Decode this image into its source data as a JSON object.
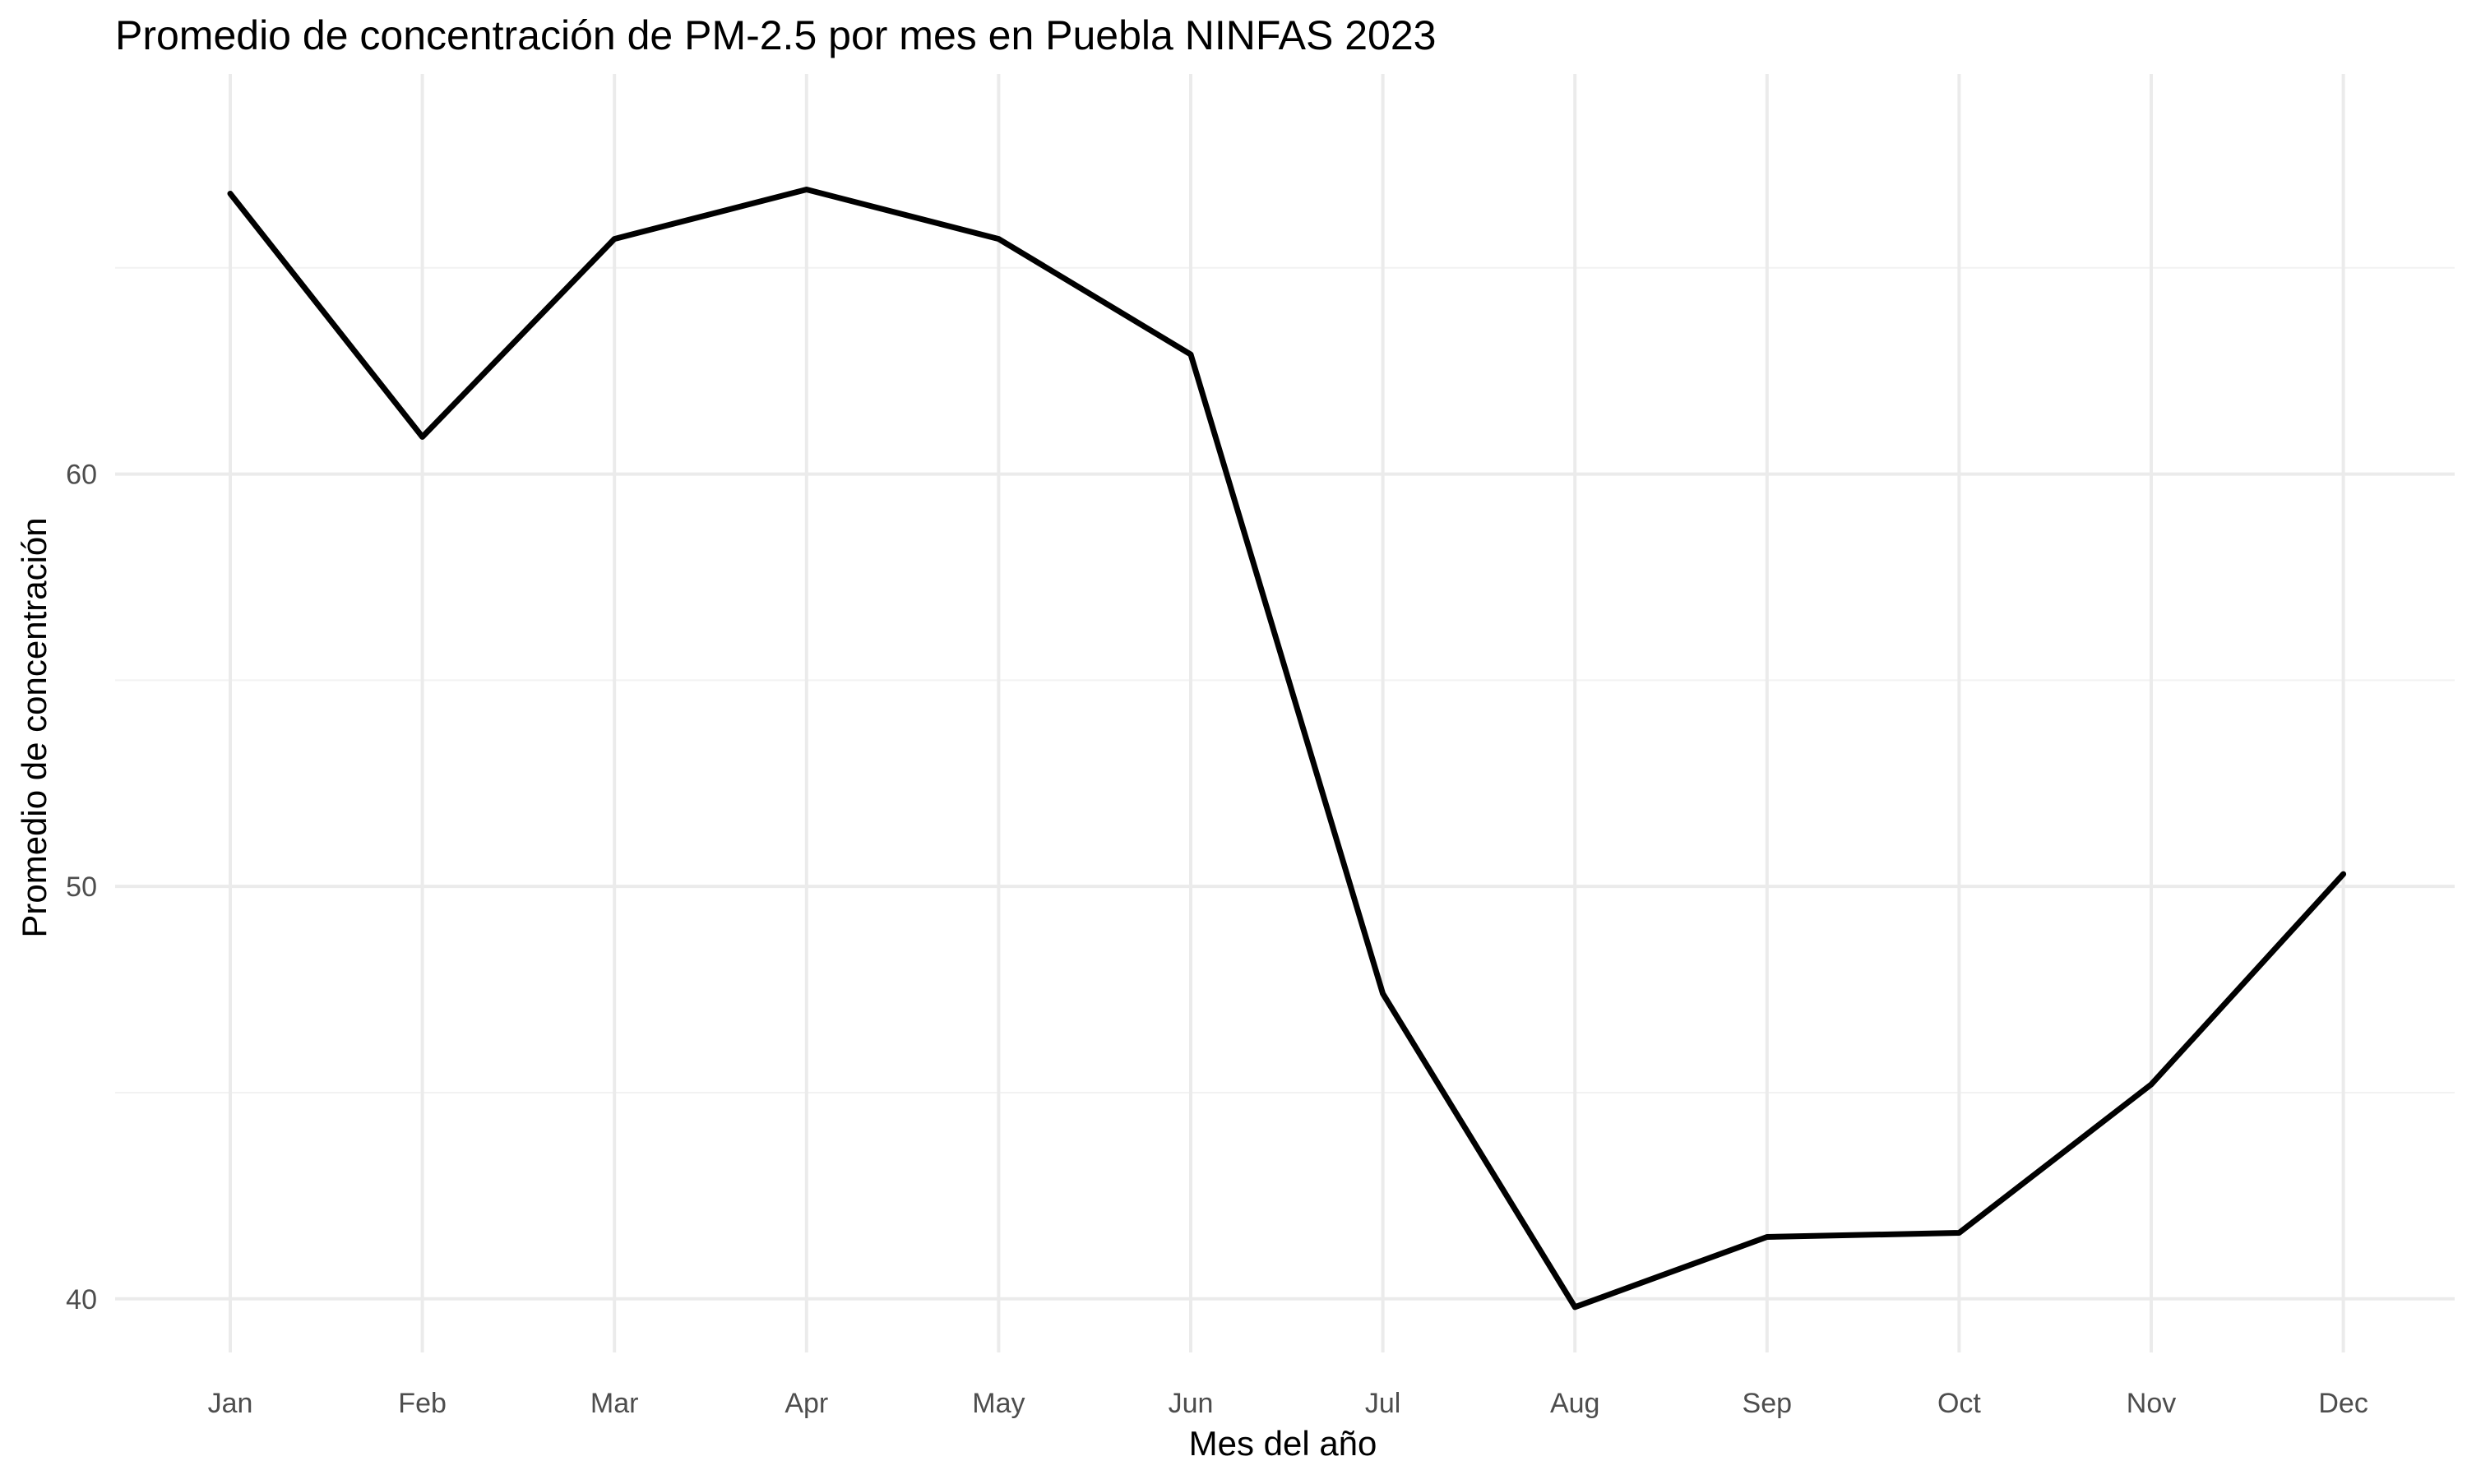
{
  "chart_data": {
    "type": "line",
    "title": "Promedio de concentración de PM-2.5 por mes en Puebla NINFAS 2023",
    "xlabel": "Mes del año",
    "ylabel": "Promedio de concentración",
    "categories": [
      "Jan",
      "Feb",
      "Mar",
      "Apr",
      "May",
      "Jun",
      "Jul",
      "Aug",
      "Sep",
      "Oct",
      "Nov",
      "Dec"
    ],
    "series": [
      {
        "values": [
          66.8,
          60.9,
          65.7,
          66.9,
          65.7,
          62.9,
          47.4,
          39.8,
          41.5,
          41.6,
          45.2,
          50.3
        ]
      }
    ],
    "ylim": [
      38.7,
      69.7
    ],
    "yticks": [
      40,
      50,
      60
    ],
    "grid": true,
    "legend": "none",
    "colors": {
      "line": "#000000",
      "grid": "#ebebeb"
    }
  }
}
